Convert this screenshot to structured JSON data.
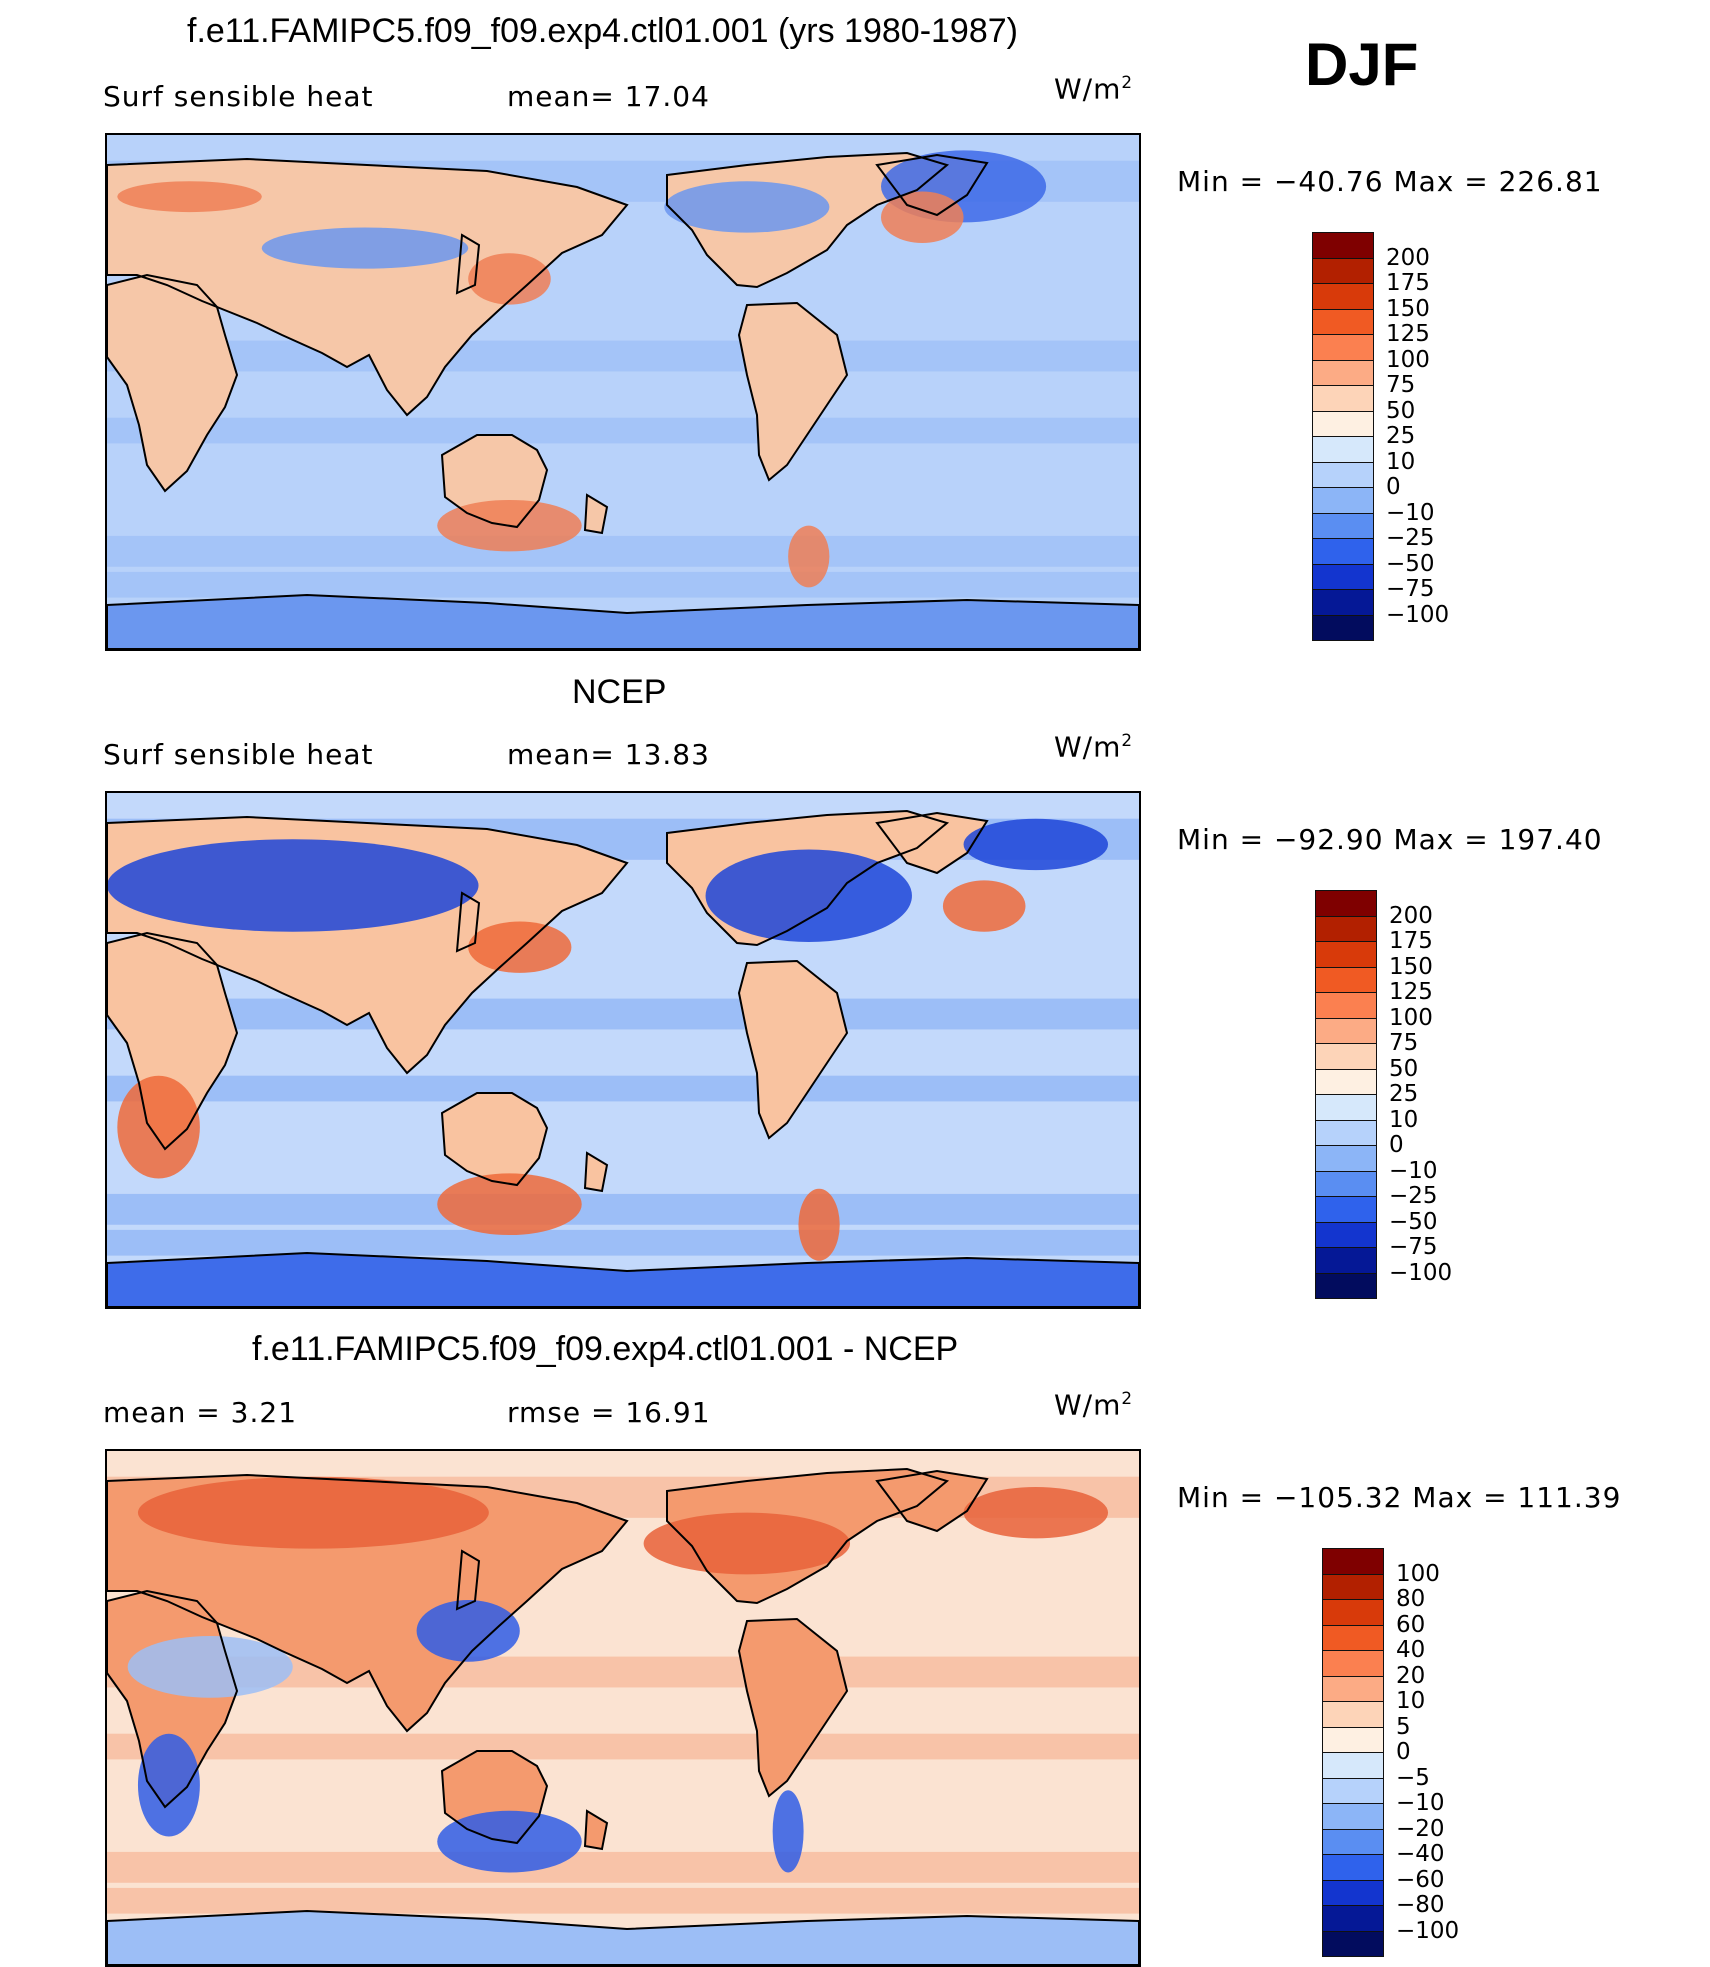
{
  "season": "DJF",
  "panels": [
    {
      "title": "f.e11.FAMIPC5.f09_f09.exp4.ctl01.001 (yrs 1980-1987)",
      "left_label": "Surf  sensible heat",
      "mid_label": "mean=   17.04",
      "units": "W/m",
      "units_exp": "2",
      "min_max": "Min  =  −40.76  Max  =  226.81",
      "colorbar_levels": [
        "200",
        "175",
        "150",
        "125",
        "100",
        "75",
        "50",
        "25",
        "10",
        "0",
        "−10",
        "−25",
        "−50",
        "−75",
        "−100"
      ],
      "colorbar_colors": [
        "#7f0000",
        "#b22000",
        "#d83a0a",
        "#f05a23",
        "#fb8050",
        "#fcab85",
        "#fdd4b8",
        "#fef0e2",
        "#d6e8fb",
        "#b6d2fb",
        "#8cb5f7",
        "#5a8ef2",
        "#2f62ec",
        "#1335cf",
        "#051896",
        "#020c5e"
      ],
      "map_palette": {
        "ocean": "#b8d2fa",
        "ocean_band": "#9bbef6",
        "land": "#f6c7a8",
        "land_hot": "#ef7f56",
        "cold": "#6b97ef",
        "very_cold": "#3d6ae8"
      }
    },
    {
      "title": "NCEP",
      "left_label": "Surf  sensible heat",
      "mid_label": "mean=   13.83",
      "units": "W/m",
      "units_exp": "2",
      "min_max": "Min  =  −92.90  Max  =  197.40",
      "colorbar_levels": [
        "200",
        "175",
        "150",
        "125",
        "100",
        "75",
        "50",
        "25",
        "10",
        "0",
        "−10",
        "−25",
        "−50",
        "−75",
        "−100"
      ],
      "colorbar_colors": [
        "#7f0000",
        "#b22000",
        "#d83a0a",
        "#f05a23",
        "#fb8050",
        "#fcab85",
        "#fdd4b8",
        "#fef0e2",
        "#d6e8fb",
        "#b6d2fb",
        "#8cb5f7",
        "#5a8ef2",
        "#2f62ec",
        "#1335cf",
        "#051896",
        "#020c5e"
      ],
      "map_palette": {
        "ocean": "#c3d9fb",
        "ocean_band": "#8cb2f5",
        "land": "#f9c3a0",
        "land_hot": "#ee6a3a",
        "cold": "#3e6cea",
        "very_cold": "#1d45d8"
      }
    },
    {
      "title": "f.e11.FAMIPC5.f09_f09.exp4.ctl01.001 - NCEP",
      "left_label": "mean  =     3.21",
      "mid_label": "rmse  =    16.91",
      "units": "W/m",
      "units_exp": "2",
      "min_max": "Min  =  −105.32  Max  =  111.39",
      "colorbar_levels": [
        "100",
        "80",
        "60",
        "40",
        "20",
        "10",
        "5",
        "0",
        "−5",
        "−10",
        "−20",
        "−40",
        "−60",
        "−80",
        "−100"
      ],
      "colorbar_colors": [
        "#7f0000",
        "#b22000",
        "#d83a0a",
        "#f05a23",
        "#fb8050",
        "#fcab85",
        "#fdd4b8",
        "#fef0e2",
        "#d6e8fb",
        "#b6d2fb",
        "#8cb5f7",
        "#5a8ef2",
        "#2f62ec",
        "#1335cf",
        "#051896",
        "#020c5e"
      ],
      "map_palette": {
        "ocean": "#fbe3d2",
        "ocean_band": "#f6b595",
        "land": "#f49a6e",
        "land_hot": "#e8623a",
        "cold": "#9cbef6",
        "very_cold": "#2f5de6"
      }
    }
  ]
}
